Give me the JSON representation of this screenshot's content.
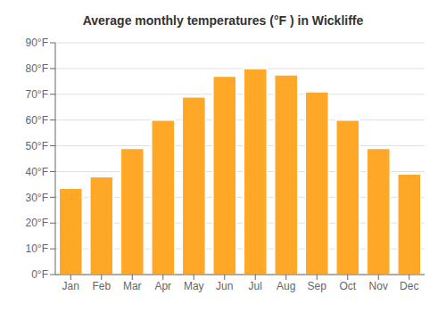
{
  "chart_data": {
    "type": "bar",
    "title": "Average monthly temperatures (°F ) in Wickliffe",
    "categories": [
      "Jan",
      "Feb",
      "Mar",
      "Apr",
      "May",
      "Jun",
      "Jul",
      "Aug",
      "Sep",
      "Oct",
      "Nov",
      "Dec"
    ],
    "values": [
      33.5,
      38.0,
      49.0,
      60.0,
      69.0,
      77.0,
      80.0,
      77.5,
      71.0,
      60.0,
      49.0,
      39.0
    ],
    "color": "#FFA726",
    "ylim": [
      0,
      90
    ],
    "yticks": [
      {
        "value": 0,
        "label": "0°F"
      },
      {
        "value": 10,
        "label": "10°F"
      },
      {
        "value": 20,
        "label": "20°F"
      },
      {
        "value": 30,
        "label": "30°F"
      },
      {
        "value": 40,
        "label": "40°F"
      },
      {
        "value": 50,
        "label": "50°F"
      },
      {
        "value": 60,
        "label": "60°F"
      },
      {
        "value": 70,
        "label": "70°F"
      },
      {
        "value": 80,
        "label": "80°F"
      },
      {
        "value": 90,
        "label": "90°F"
      }
    ],
    "grid": true
  }
}
